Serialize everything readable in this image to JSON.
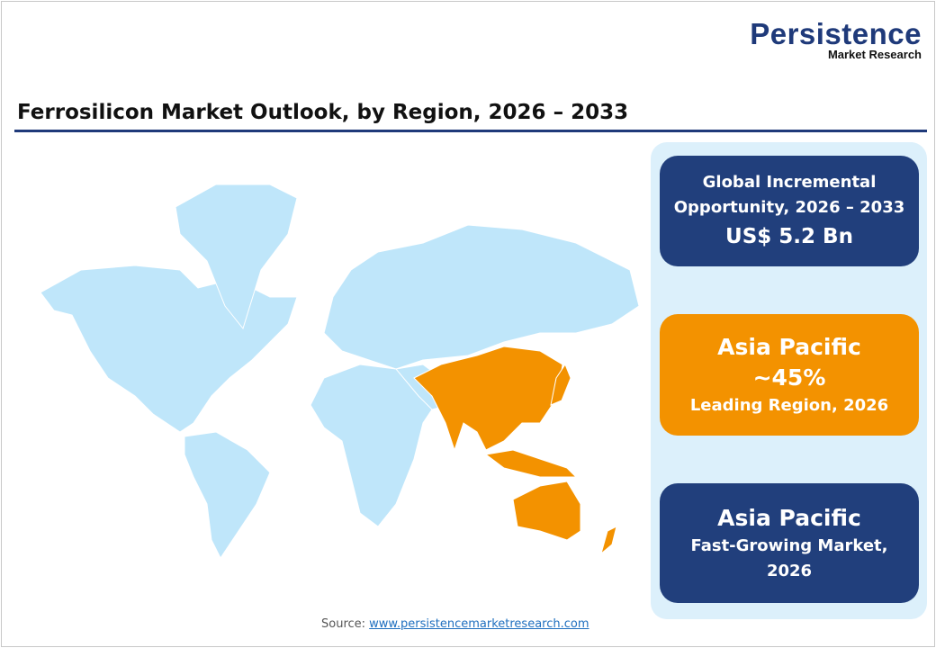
{
  "logo": {
    "line1": "Persistence",
    "line2": "Market Research"
  },
  "title": "Ferrosilicon Market Outlook, by Region, 2026 – 2033",
  "colors": {
    "navy": "#213f7c",
    "orange": "#f39200",
    "map_base": "#bfe6fa",
    "panel": "#dcf0fb"
  },
  "map": {
    "highlighted_region": "Asia Pacific"
  },
  "cards": [
    {
      "line1": "Global Incremental",
      "line2": "Opportunity, 2026 – 2033",
      "value": "US$ 5.2 Bn"
    },
    {
      "region": "Asia Pacific",
      "share": "~45%",
      "label": "Leading Region, 2026"
    },
    {
      "region": "Asia Pacific",
      "label1": "Fast-Growing Market,",
      "label2": "2026"
    }
  ],
  "source": {
    "label": "Source:",
    "link": "www.persistencemarketresearch.com"
  }
}
